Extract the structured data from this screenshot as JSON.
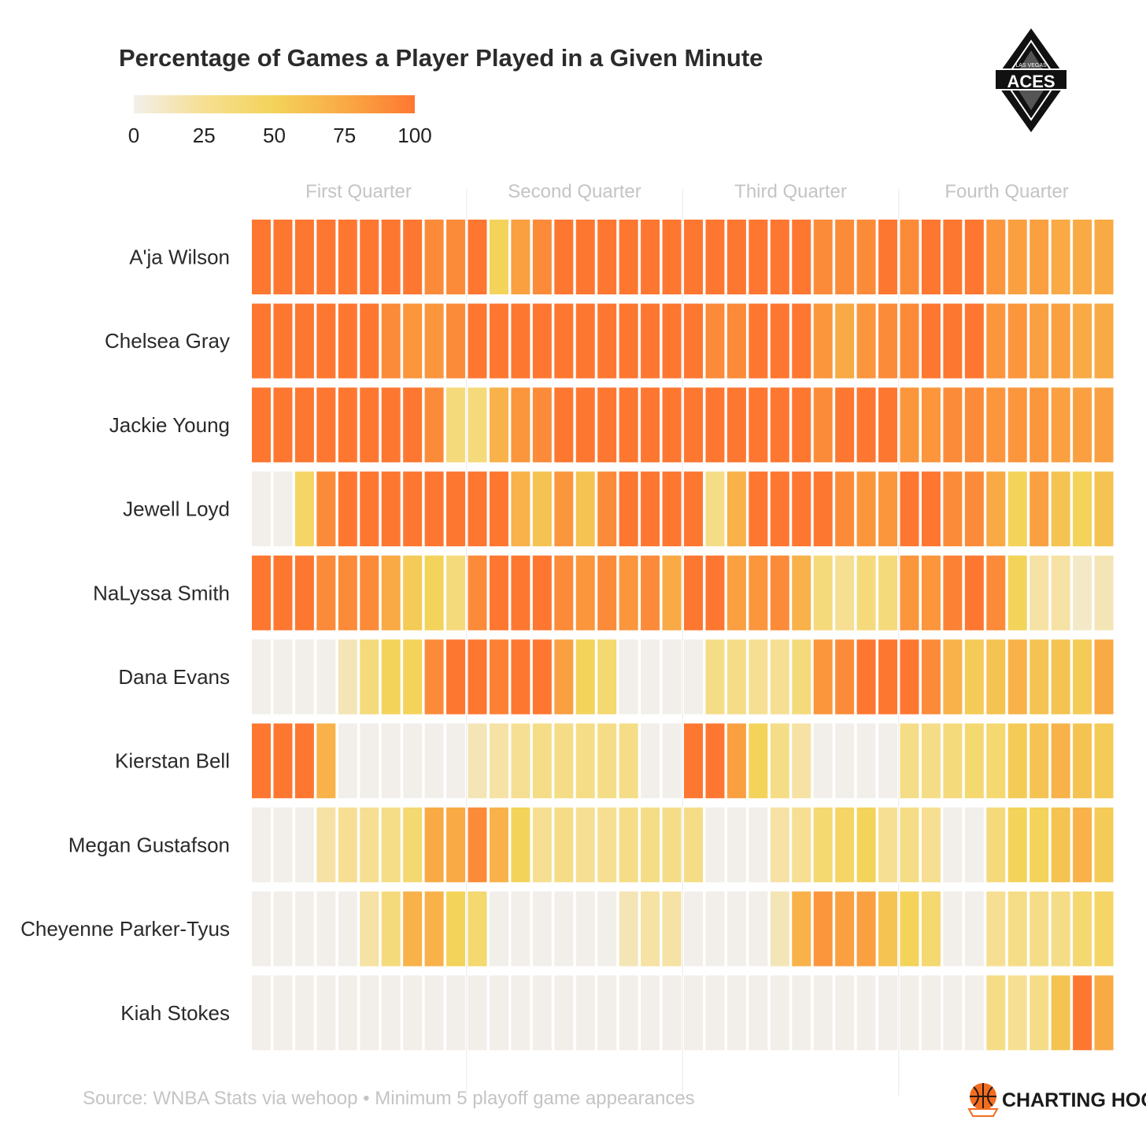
{
  "chart_data": {
    "type": "heatmap",
    "title": "Percentage of Games a Player Played in a Given Minute",
    "legend": {
      "title": "",
      "min": 0,
      "max": 100,
      "ticks": [
        "0",
        "25",
        "50",
        "75",
        "100"
      ],
      "colors": [
        "#f2efeb",
        "#f6df92",
        "#f3d35a",
        "#f9aa45",
        "#fe7731"
      ]
    },
    "x": {
      "minutes": 40,
      "groups": [
        "First Quarter",
        "Second Quarter",
        "Third Quarter",
        "Fourth Quarter"
      ],
      "minutes_per_group": 10
    },
    "players": [
      {
        "name": "A'ja Wilson",
        "values": [
          100,
          100,
          100,
          100,
          100,
          100,
          100,
          100,
          90,
          90,
          100,
          50,
          80,
          90,
          100,
          100,
          100,
          100,
          100,
          100,
          100,
          100,
          100,
          100,
          100,
          100,
          90,
          90,
          90,
          100,
          90,
          100,
          100,
          100,
          85,
          80,
          80,
          75,
          75,
          75
        ]
      },
      {
        "name": "Chelsea Gray",
        "values": [
          100,
          100,
          100,
          100,
          100,
          100,
          90,
          85,
          85,
          90,
          100,
          100,
          100,
          100,
          100,
          100,
          100,
          100,
          100,
          100,
          100,
          90,
          90,
          100,
          100,
          100,
          85,
          75,
          85,
          90,
          90,
          100,
          100,
          100,
          85,
          85,
          80,
          80,
          75,
          75
        ]
      },
      {
        "name": "Jackie Young",
        "values": [
          100,
          100,
          100,
          100,
          100,
          100,
          100,
          100,
          90,
          35,
          35,
          70,
          85,
          90,
          100,
          100,
          100,
          100,
          100,
          100,
          100,
          100,
          100,
          100,
          100,
          100,
          90,
          100,
          100,
          100,
          85,
          85,
          90,
          90,
          85,
          85,
          85,
          80,
          80,
          80
        ]
      },
      {
        "name": "Jewell Loyd",
        "values": [
          0,
          0,
          45,
          90,
          100,
          100,
          100,
          100,
          100,
          100,
          100,
          100,
          70,
          60,
          85,
          60,
          90,
          100,
          100,
          100,
          100,
          30,
          70,
          100,
          100,
          100,
          100,
          90,
          85,
          85,
          100,
          100,
          90,
          90,
          75,
          50,
          80,
          60,
          50,
          60
        ]
      },
      {
        "name": "NaLyssa Smith",
        "values": [
          100,
          100,
          100,
          90,
          90,
          90,
          75,
          55,
          50,
          35,
          90,
          100,
          100,
          100,
          90,
          85,
          90,
          85,
          90,
          75,
          100,
          100,
          80,
          85,
          90,
          70,
          35,
          25,
          35,
          35,
          85,
          85,
          95,
          100,
          90,
          50,
          20,
          20,
          10,
          15
        ]
      },
      {
        "name": "Dana Evans",
        "values": [
          0,
          0,
          0,
          0,
          15,
          35,
          50,
          50,
          90,
          100,
          100,
          95,
          100,
          100,
          80,
          50,
          40,
          0,
          0,
          0,
          0,
          30,
          30,
          25,
          25,
          35,
          85,
          90,
          100,
          100,
          100,
          90,
          70,
          55,
          60,
          70,
          60,
          60,
          55,
          75
        ]
      },
      {
        "name": "Kierstan Bell",
        "values": [
          100,
          100,
          100,
          70,
          0,
          0,
          0,
          0,
          0,
          0,
          15,
          20,
          25,
          30,
          30,
          30,
          30,
          30,
          0,
          0,
          100,
          100,
          80,
          50,
          30,
          20,
          0,
          0,
          0,
          0,
          30,
          30,
          35,
          40,
          40,
          55,
          60,
          70,
          60,
          55
        ]
      },
      {
        "name": "Megan Gustafson",
        "values": [
          0,
          0,
          0,
          20,
          25,
          25,
          30,
          40,
          75,
          75,
          90,
          70,
          50,
          25,
          30,
          25,
          25,
          30,
          30,
          30,
          30,
          0,
          0,
          0,
          20,
          25,
          40,
          45,
          50,
          25,
          30,
          25,
          0,
          0,
          35,
          50,
          50,
          60,
          70,
          55
        ]
      },
      {
        "name": "Cheyenne Parker-Tyus",
        "values": [
          0,
          0,
          0,
          0,
          0,
          20,
          35,
          70,
          70,
          50,
          40,
          0,
          0,
          0,
          0,
          0,
          0,
          15,
          20,
          20,
          0,
          0,
          0,
          0,
          15,
          70,
          85,
          80,
          80,
          60,
          50,
          40,
          0,
          0,
          25,
          30,
          30,
          30,
          40,
          45
        ]
      },
      {
        "name": "Kiah Stokes",
        "values": [
          0,
          0,
          0,
          0,
          0,
          0,
          0,
          0,
          0,
          0,
          0,
          0,
          0,
          0,
          0,
          0,
          0,
          0,
          0,
          0,
          0,
          0,
          0,
          0,
          0,
          0,
          0,
          0,
          0,
          0,
          0,
          0,
          0,
          0,
          30,
          25,
          30,
          60,
          100,
          75
        ]
      }
    ]
  },
  "logo": {
    "name": "ACES",
    "subtitle": "LAS VEGAS"
  },
  "footer": {
    "source": "Source: WNBA Stats via wehoop • Minimum 5 playoff game appearances",
    "brand": "CHARTING HOOPS"
  },
  "colors": {
    "title": "#2b2b2b",
    "muted": "#c4c4c4",
    "empty_cell": "#f2efeb",
    "brand_orange": "#f26d21"
  }
}
